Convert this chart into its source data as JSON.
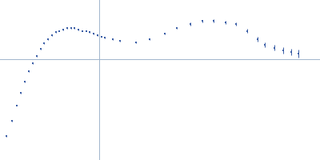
{
  "dot_color": "#3b5ea6",
  "axis_color": "#a0b4cc",
  "background": "#ffffff",
  "points": [
    [
      0.02,
      -0.55
    ],
    [
      0.04,
      -0.44
    ],
    [
      0.055,
      -0.33
    ],
    [
      0.068,
      -0.24
    ],
    [
      0.082,
      -0.16
    ],
    [
      0.095,
      -0.09
    ],
    [
      0.108,
      -0.03
    ],
    [
      0.12,
      0.02
    ],
    [
      0.133,
      0.07
    ],
    [
      0.145,
      0.11
    ],
    [
      0.158,
      0.14
    ],
    [
      0.17,
      0.17
    ],
    [
      0.183,
      0.19
    ],
    [
      0.195,
      0.2
    ],
    [
      0.208,
      0.21
    ],
    [
      0.22,
      0.22
    ],
    [
      0.233,
      0.22
    ],
    [
      0.245,
      0.22
    ],
    [
      0.258,
      0.21
    ],
    [
      0.27,
      0.2
    ],
    [
      0.283,
      0.2
    ],
    [
      0.295,
      0.19
    ],
    [
      0.308,
      0.18
    ],
    [
      0.32,
      0.17
    ],
    [
      0.333,
      0.16
    ],
    [
      0.345,
      0.15
    ],
    [
      0.37,
      0.14
    ],
    [
      0.395,
      0.13
    ],
    [
      0.445,
      0.12
    ],
    [
      0.49,
      0.14
    ],
    [
      0.54,
      0.18
    ],
    [
      0.58,
      0.22
    ],
    [
      0.625,
      0.25
    ],
    [
      0.665,
      0.27
    ],
    [
      0.7,
      0.27
    ],
    [
      0.74,
      0.26
    ],
    [
      0.775,
      0.25
    ],
    [
      0.81,
      0.2
    ],
    [
      0.845,
      0.14
    ],
    [
      0.87,
      0.1
    ],
    [
      0.9,
      0.08
    ],
    [
      0.93,
      0.06
    ],
    [
      0.955,
      0.05
    ],
    [
      0.98,
      0.04
    ]
  ],
  "yerr": [
    0.005,
    0.005,
    0.005,
    0.005,
    0.005,
    0.005,
    0.005,
    0.005,
    0.005,
    0.005,
    0.005,
    0.005,
    0.005,
    0.005,
    0.005,
    0.005,
    0.005,
    0.005,
    0.005,
    0.005,
    0.005,
    0.005,
    0.005,
    0.005,
    0.005,
    0.005,
    0.005,
    0.005,
    0.005,
    0.005,
    0.005,
    0.008,
    0.01,
    0.01,
    0.012,
    0.012,
    0.012,
    0.015,
    0.015,
    0.018,
    0.02,
    0.022,
    0.025,
    0.028
  ],
  "xlim": [
    0.0,
    1.05
  ],
  "ylim": [
    -0.72,
    0.42
  ],
  "hline_y": 0.0,
  "vline_x": 0.325,
  "figsize": [
    4.0,
    2.0
  ],
  "dpi": 100
}
